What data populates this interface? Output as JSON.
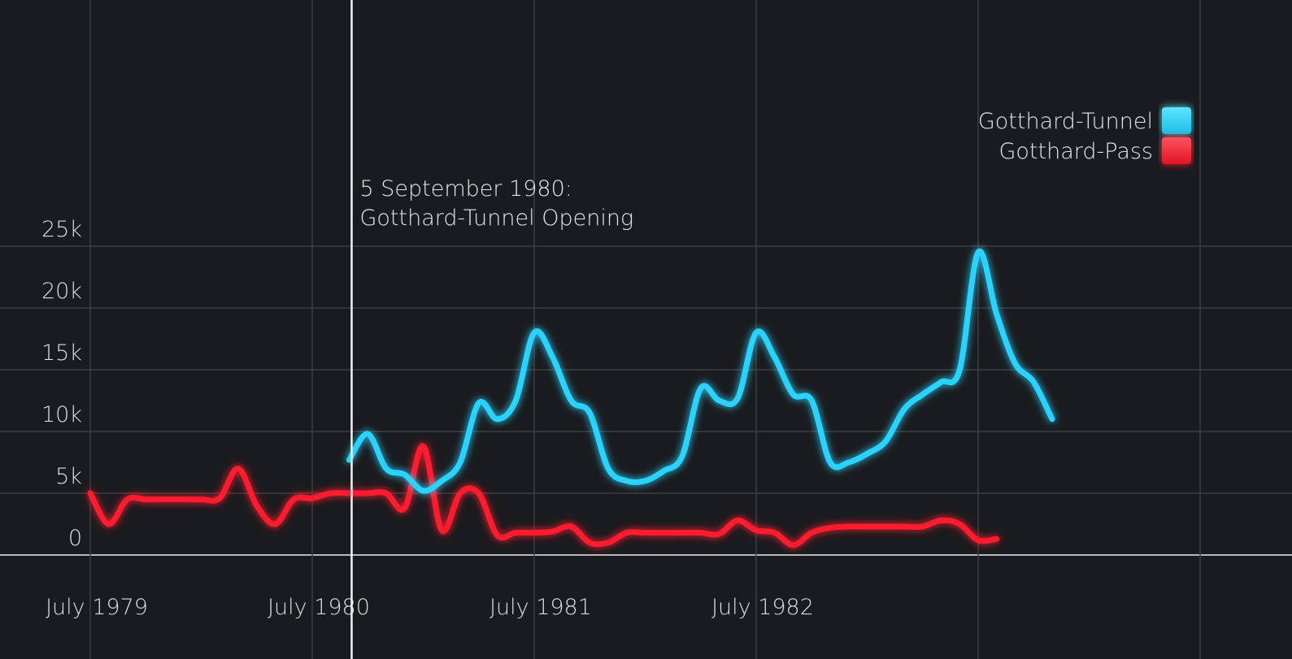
{
  "chart_data": {
    "type": "line",
    "x_axis": "time",
    "xlim": [
      "1979-07",
      "1984-01"
    ],
    "ylim": [
      0,
      25000
    ],
    "ylabel": "",
    "xlabel": "",
    "yticks": [
      {
        "value": 0,
        "label": "0"
      },
      {
        "value": 5000,
        "label": "5k"
      },
      {
        "value": 10000,
        "label": "10k"
      },
      {
        "value": 15000,
        "label": "15k"
      },
      {
        "value": 20000,
        "label": "20k"
      },
      {
        "value": 25000,
        "label": "25k"
      }
    ],
    "xticks": [
      {
        "x": "1979-07",
        "label": "July 1979"
      },
      {
        "x": "1980-07",
        "label": "July 1980"
      },
      {
        "x": "1981-07",
        "label": "July 1981"
      },
      {
        "x": "1982-07",
        "label": "July 1982"
      }
    ],
    "grid": true,
    "legend_position": "top-right",
    "annotation": {
      "x": "1980-09-05",
      "lines": [
        "5 September 1980:",
        "Gotthard-Tunnel Opening"
      ]
    },
    "series": [
      {
        "name": "Gotthard-Tunnel",
        "color": "#29d2ff",
        "points": [
          [
            "1980-09",
            7700
          ],
          [
            "1980-10",
            9800
          ],
          [
            "1980-11",
            7000
          ],
          [
            "1980-12",
            6500
          ],
          [
            "1981-01",
            5200
          ],
          [
            "1981-02",
            6000
          ],
          [
            "1981-03",
            7500
          ],
          [
            "1981-04",
            12300
          ],
          [
            "1981-05",
            11000
          ],
          [
            "1981-06",
            12500
          ],
          [
            "1981-07",
            18000
          ],
          [
            "1981-08",
            16000
          ],
          [
            "1981-09",
            12500
          ],
          [
            "1981-10",
            11500
          ],
          [
            "1981-11",
            7000
          ],
          [
            "1981-12",
            6000
          ],
          [
            "1982-01",
            6000
          ],
          [
            "1982-02",
            6800
          ],
          [
            "1982-03",
            8000
          ],
          [
            "1982-04",
            13500
          ],
          [
            "1982-05",
            12500
          ],
          [
            "1982-06",
            12700
          ],
          [
            "1982-07",
            18000
          ],
          [
            "1982-08",
            16000
          ],
          [
            "1982-09",
            13000
          ],
          [
            "1982-10",
            12500
          ],
          [
            "1982-11",
            7500
          ],
          [
            "1982-12",
            7500
          ],
          [
            "1983-01",
            8200
          ],
          [
            "1983-02",
            9200
          ],
          [
            "1983-03",
            11800
          ],
          [
            "1983-04",
            13000
          ],
          [
            "1983-05",
            14000
          ],
          [
            "1983-06",
            15000
          ],
          [
            "1983-07",
            24500
          ],
          [
            "1983-08",
            19500
          ],
          [
            "1983-09",
            15500
          ],
          [
            "1983-10",
            14000
          ],
          [
            "1983-11",
            11000
          ]
        ]
      },
      {
        "name": "Gotthard-Pass",
        "color": "#ff1e2d",
        "points": [
          [
            "1979-07",
            5000
          ],
          [
            "1979-08",
            2500
          ],
          [
            "1979-09",
            4500
          ],
          [
            "1979-10",
            4500
          ],
          [
            "1979-11",
            4500
          ],
          [
            "1979-12",
            4500
          ],
          [
            "1980-01",
            4500
          ],
          [
            "1980-02",
            4600
          ],
          [
            "1980-03",
            7000
          ],
          [
            "1980-04",
            4000
          ],
          [
            "1980-05",
            2500
          ],
          [
            "1980-06",
            4500
          ],
          [
            "1980-07",
            4600
          ],
          [
            "1980-08",
            5000
          ],
          [
            "1980-09",
            5000
          ],
          [
            "1980-10",
            5000
          ],
          [
            "1980-11",
            5000
          ],
          [
            "1980-12",
            3800
          ],
          [
            "1981-01",
            8800
          ],
          [
            "1981-02",
            2000
          ],
          [
            "1981-03",
            5000
          ],
          [
            "1981-04",
            5000
          ],
          [
            "1981-05",
            1600
          ],
          [
            "1981-06",
            1800
          ],
          [
            "1981-07",
            1800
          ],
          [
            "1981-08",
            1900
          ],
          [
            "1981-09",
            2300
          ],
          [
            "1981-10",
            1000
          ],
          [
            "1981-11",
            1000
          ],
          [
            "1981-12",
            1800
          ],
          [
            "1982-01",
            1800
          ],
          [
            "1982-02",
            1800
          ],
          [
            "1982-03",
            1800
          ],
          [
            "1982-04",
            1800
          ],
          [
            "1982-05",
            1700
          ],
          [
            "1982-06",
            2800
          ],
          [
            "1982-07",
            2000
          ],
          [
            "1982-08",
            1800
          ],
          [
            "1982-09",
            800
          ],
          [
            "1982-10",
            1800
          ],
          [
            "1982-11",
            2200
          ],
          [
            "1982-12",
            2300
          ],
          [
            "1983-01",
            2300
          ],
          [
            "1983-02",
            2300
          ],
          [
            "1983-03",
            2300
          ],
          [
            "1983-04",
            2300
          ],
          [
            "1983-05",
            2800
          ],
          [
            "1983-06",
            2500
          ],
          [
            "1983-07",
            1200
          ],
          [
            "1983-08",
            1300
          ]
        ]
      }
    ]
  }
}
